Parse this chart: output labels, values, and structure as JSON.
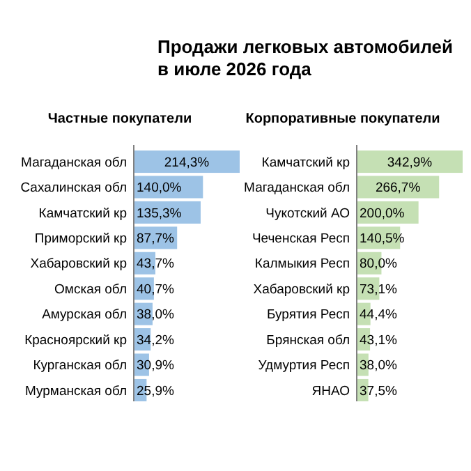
{
  "chart_data": [
    {
      "type": "other",
      "title": "Продажи легковых автомобилей в июле 2026 года"
    },
    {
      "type": "bar",
      "orientation": "horizontal",
      "title": "Частные покупатели",
      "categories": [
        "Магаданская обл",
        "Сахалинская обл",
        "Камчатский кр",
        "Приморский кр",
        "Хабаровский кр",
        "Омская обл",
        "Амурская обл",
        "Красноярский кр",
        "Курганская обл",
        "Мурманская обл"
      ],
      "values": [
        214.3,
        140.0,
        135.3,
        87.7,
        43.7,
        40.7,
        38.0,
        34.2,
        30.9,
        25.9
      ],
      "value_labels": [
        "214,3%",
        "140,0%",
        "135,3%",
        "87,7%",
        "43,7%",
        "40,7%",
        "38,0%",
        "34,2%",
        "30,9%",
        "25,9%"
      ],
      "color": "#9dc3e6"
    },
    {
      "type": "bar",
      "orientation": "horizontal",
      "title": "Корпоративные покупатели",
      "categories": [
        "Камчатский кр",
        "Магаданская обл",
        "Чукотский АО",
        "Чеченская Респ",
        "Калмыкия Респ",
        "Хабаровский кр",
        "Бурятия Респ",
        "Брянская обл",
        "Удмуртия Респ",
        "ЯНАО"
      ],
      "values": [
        342.9,
        266.7,
        200.0,
        140.5,
        80.0,
        73.1,
        44.4,
        43.1,
        38.0,
        37.5
      ],
      "value_labels": [
        "342,9%",
        "266,7%",
        "200,0%",
        "140,5%",
        "80,0%",
        "73,1%",
        "44,4%",
        "43,1%",
        "38,0%",
        "37,5%"
      ],
      "color": "#c5e0b4"
    }
  ]
}
